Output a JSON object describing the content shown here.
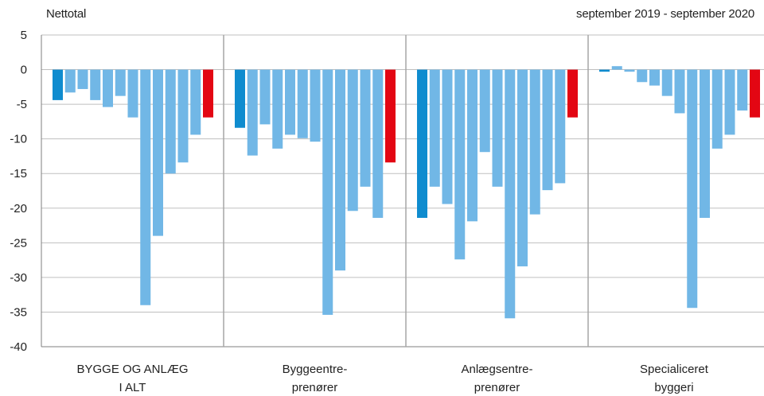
{
  "chart_data": {
    "type": "bar",
    "ylabel": "Nettotal",
    "period": "september 2019 - september 2020",
    "ylim": [
      -40,
      5
    ],
    "yticks": [
      5,
      0,
      -5,
      -10,
      -15,
      -20,
      -25,
      -30,
      -35,
      -40
    ],
    "grid": true,
    "colors": {
      "first": "#0f8ccf",
      "middle": "#71b7e6",
      "last": "#e30613",
      "grid": "#bfbfbf",
      "divider": "#a6a6a6",
      "axis": "#7f7f7f"
    },
    "groups": [
      {
        "label_lines": [
          "BYGGE OG ANLÆG",
          "I ALT"
        ],
        "values": [
          -4.4,
          -3.3,
          -2.8,
          -4.4,
          -5.4,
          -3.8,
          -6.9,
          -34,
          -24,
          -15,
          -13.4,
          -9.4,
          -6.9
        ]
      },
      {
        "label_lines": [
          "Byggeentre-",
          "prenører"
        ],
        "values": [
          -8.4,
          -12.4,
          -7.9,
          -11.4,
          -9.4,
          -9.9,
          -10.4,
          -35.4,
          -29,
          -20.4,
          -16.9,
          -21.4,
          -13.4
        ]
      },
      {
        "label_lines": [
          "Anlægsentre-",
          "prenører"
        ],
        "values": [
          -21.4,
          -16.9,
          -19.4,
          -27.4,
          -21.9,
          -11.9,
          -16.9,
          -35.9,
          -28.4,
          -20.9,
          -17.4,
          -16.4,
          -6.9
        ]
      },
      {
        "label_lines": [
          "Specialiceret",
          "byggeri"
        ],
        "values": [
          -0.3,
          0.5,
          -0.3,
          -1.8,
          -2.3,
          -3.8,
          -6.3,
          -34.4,
          -21.4,
          -11.4,
          -9.4,
          -5.9,
          -6.9
        ]
      }
    ]
  }
}
